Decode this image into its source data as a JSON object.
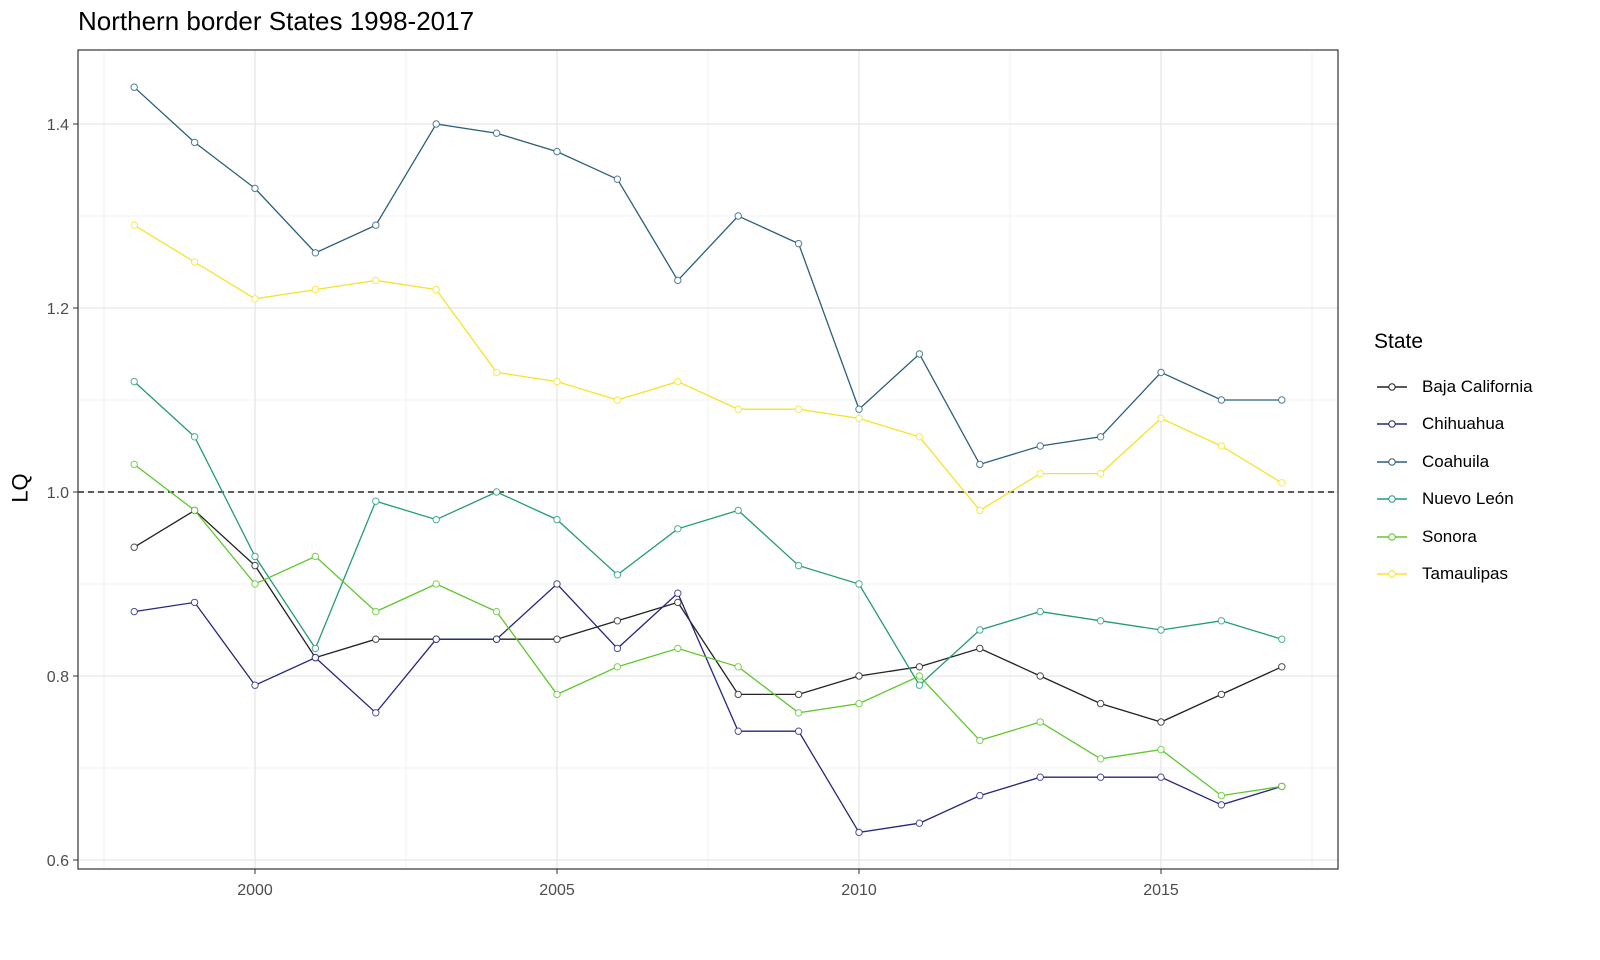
{
  "chart_data": {
    "type": "line",
    "title": "Northern border States 1998-2017",
    "xlabel": "",
    "ylabel": "LQ",
    "xlim": [
      1997.6,
      2018.4
    ],
    "ylim": [
      0.59,
      1.48
    ],
    "xticks": [
      2000,
      2005,
      2010,
      2015
    ],
    "yticks": [
      0.6,
      0.8,
      1.0,
      1.2,
      1.4
    ],
    "ytick_labels": [
      "0.6",
      "0.8",
      "1.0",
      "1.2",
      "1.4"
    ],
    "reference_line": 1.0,
    "grid": true,
    "legend_title": "State",
    "legend_position": "right",
    "x": [
      1998,
      1999,
      2000,
      2001,
      2002,
      2003,
      2004,
      2005,
      2006,
      2007,
      2008,
      2009,
      2010,
      2011,
      2012,
      2013,
      2014,
      2015,
      2016,
      2017
    ],
    "series": [
      {
        "name": "Baja California",
        "color": "#222222",
        "values": [
          0.94,
          0.98,
          0.92,
          0.82,
          0.84,
          0.84,
          0.84,
          0.84,
          0.86,
          0.88,
          0.78,
          0.78,
          0.8,
          0.81,
          0.83,
          0.8,
          0.77,
          0.75,
          0.78,
          0.81
        ]
      },
      {
        "name": "Chihuahua",
        "color": "#26267e",
        "values": [
          0.87,
          0.88,
          0.79,
          0.82,
          0.76,
          0.84,
          0.84,
          0.9,
          0.83,
          0.89,
          0.74,
          0.74,
          0.63,
          0.64,
          0.67,
          0.69,
          0.69,
          0.69,
          0.66,
          0.68
        ]
      },
      {
        "name": "Coahuila",
        "color": "#2b5f7c",
        "values": [
          1.44,
          1.38,
          1.33,
          1.26,
          1.29,
          1.4,
          1.39,
          1.37,
          1.34,
          1.23,
          1.3,
          1.27,
          1.09,
          1.15,
          1.03,
          1.05,
          1.06,
          1.13,
          1.1,
          1.1
        ]
      },
      {
        "name": "Nuevo León",
        "color": "#249a7c",
        "values": [
          1.12,
          1.06,
          0.93,
          0.83,
          0.99,
          0.97,
          1.0,
          0.97,
          0.91,
          0.96,
          0.98,
          0.92,
          0.9,
          0.79,
          0.85,
          0.87,
          0.86,
          0.85,
          0.86,
          0.84
        ]
      },
      {
        "name": "Sonora",
        "color": "#5ec82c",
        "values": [
          1.03,
          0.98,
          0.9,
          0.93,
          0.87,
          0.9,
          0.87,
          0.78,
          0.81,
          0.83,
          0.81,
          0.76,
          0.77,
          0.8,
          0.73,
          0.75,
          0.71,
          0.72,
          0.67,
          0.68
        ]
      },
      {
        "name": "Tamaulipas",
        "color": "#f7e22a",
        "values": [
          1.29,
          1.25,
          1.21,
          1.22,
          1.23,
          1.22,
          1.13,
          1.12,
          1.1,
          1.12,
          1.09,
          1.09,
          1.08,
          1.06,
          0.98,
          1.02,
          1.02,
          1.08,
          1.05,
          1.01
        ]
      }
    ]
  }
}
